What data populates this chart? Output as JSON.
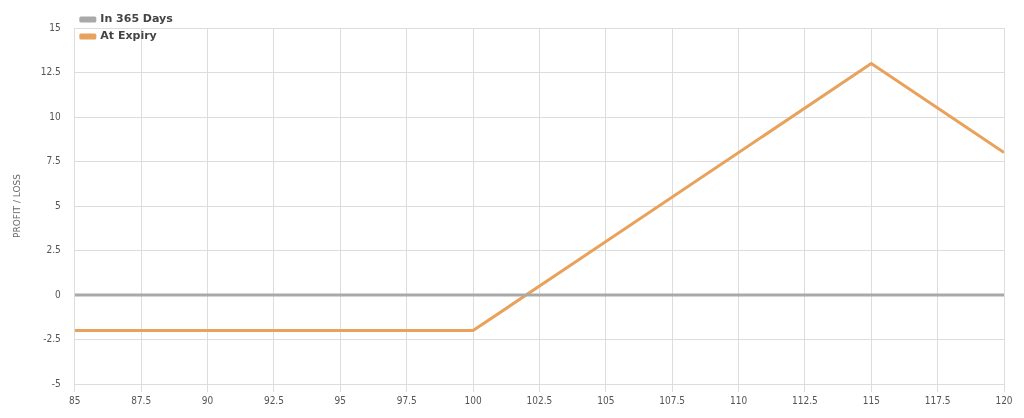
{
  "chart_data": {
    "type": "line",
    "ylabel": "PROFIT / LOSS",
    "x": [
      85,
      100,
      115,
      120
    ],
    "series": [
      {
        "name": "In 365 Days",
        "color": "#a9a9a9",
        "values": [
          0,
          0,
          0,
          0
        ]
      },
      {
        "name": "At Expiry",
        "color": "#e8a25c",
        "values": [
          -2,
          -2,
          13,
          8
        ]
      }
    ],
    "xlim": [
      85,
      120
    ],
    "xticks": [
      85,
      87.5,
      90,
      92.5,
      95,
      97.5,
      100,
      102.5,
      105,
      107.5,
      110,
      112.5,
      115,
      117.5,
      120
    ],
    "ylim": [
      -5,
      15
    ],
    "yticks": [
      -5,
      -2.5,
      0,
      2.5,
      5,
      7.5,
      10,
      12.5,
      15
    ],
    "grid": true,
    "legend": "top left",
    "marker": "none",
    "line_style": "solid"
  }
}
